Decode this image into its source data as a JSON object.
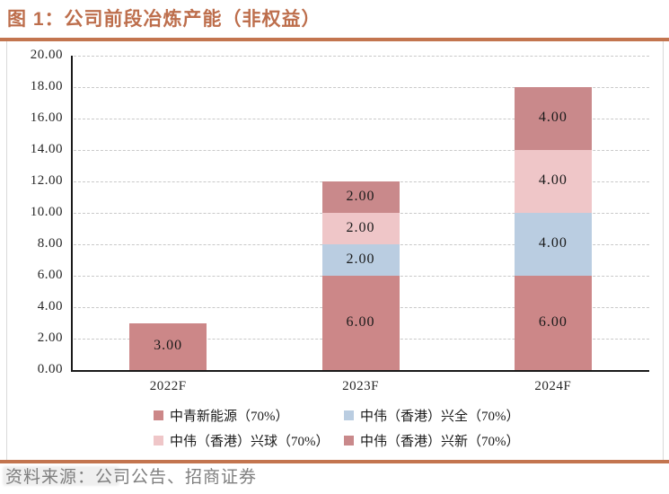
{
  "header": {
    "title": "图 1：公司前段冶炼产能（非权益）"
  },
  "source": {
    "label": "资料来源：公司公告、招商证券"
  },
  "colors": {
    "accent_title": "#BD6E4C",
    "rule": "#C3754F",
    "grid": "#C9C9C9",
    "axis": "#1A1A1A",
    "panel_border": "#D9D9D9",
    "source_text": "#7F7F7F"
  },
  "chart_data": {
    "type": "bar",
    "stacked": true,
    "title": "公司前段冶炼产能（非权益）",
    "categories": [
      "2022F",
      "2023F",
      "2024F"
    ],
    "series": [
      {
        "name": "中青新能源（70%）",
        "color": "#CC8788",
        "values": [
          3,
          6,
          6
        ]
      },
      {
        "name": "中伟（香港）兴全（70%）",
        "color": "#BACDE1",
        "values": [
          0,
          2,
          4
        ]
      },
      {
        "name": "中伟（香港）兴球（70%）",
        "color": "#EFC6C8",
        "values": [
          0,
          2,
          4
        ]
      },
      {
        "name": "中伟（香港）兴新（70%）",
        "color": "#C9898B",
        "values": [
          0,
          2,
          4
        ]
      }
    ],
    "bar_totals": [
      3,
      12,
      18
    ],
    "ylim": [
      0,
      20
    ],
    "ytick_step": 2,
    "yticks": [
      "0.00",
      "2.00",
      "4.00",
      "6.00",
      "8.00",
      "10.00",
      "12.00",
      "14.00",
      "16.00",
      "18.00",
      "20.00"
    ],
    "data_label_format": "0.00",
    "grid": "horizontal-dashed",
    "legend_position": "bottom",
    "legend_columns": 2
  }
}
